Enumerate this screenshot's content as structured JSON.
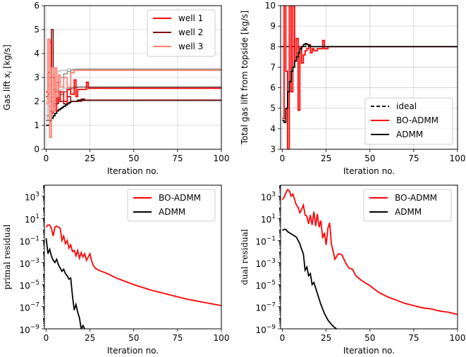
{
  "chart_data": [
    {
      "id": "gaslift",
      "type": "line",
      "xlabel": "Iteration no.",
      "ylabel": "Gas lift $x_i$ [kg/s]",
      "ylabel_text": "Gas lift x",
      "ylabel_sub": "i",
      "ylabel_tail": " [kg/s]",
      "xlim": [
        -1,
        100
      ],
      "ylim": [
        0,
        6
      ],
      "yscale": "linear",
      "xticks": [
        0,
        25,
        50,
        75,
        100
      ],
      "yticks": [
        0,
        1,
        2,
        3,
        4,
        5,
        6
      ],
      "ytick_labels": [
        "0",
        "1",
        "2",
        "3",
        "4",
        "5",
        "6"
      ],
      "grid": true,
      "legend_position": "top-right",
      "legend": [
        {
          "label": "well 1",
          "color": "#ff0000"
        },
        {
          "label": " well 2",
          "color": "#800000"
        },
        {
          "label": "well 3",
          "color": "#fa8072"
        }
      ],
      "series": [
        {
          "name": "well 3 ideal",
          "color": "#c0c0c0",
          "width": 1.5,
          "style": "step",
          "x": [
            0,
            1,
            2,
            3,
            4,
            5,
            6,
            8,
            10,
            12,
            14,
            16,
            18,
            22,
            100
          ],
          "y": [
            1.3,
            2.2,
            2.7,
            3.0,
            3.1,
            3.2,
            3.25,
            3.3,
            3.3,
            3.35,
            3.35,
            3.35,
            3.35,
            3.35,
            3.35
          ]
        },
        {
          "name": "well 1 ideal",
          "color": "#c0c0c0",
          "width": 1.5,
          "style": "step",
          "x": [
            0,
            1,
            2,
            3,
            4,
            6,
            8,
            10,
            14,
            18,
            22,
            100
          ],
          "y": [
            1.2,
            1.8,
            2.1,
            2.3,
            2.4,
            2.45,
            2.5,
            2.55,
            2.6,
            2.6,
            2.6,
            2.6
          ]
        },
        {
          "name": "well 1 ADMM",
          "color": "#606060",
          "width": 1.5,
          "style": "step",
          "x": [
            0,
            2,
            4,
            6,
            8,
            10,
            12,
            14,
            16,
            18,
            20,
            100
          ],
          "y": [
            1.2,
            1.6,
            1.9,
            2.1,
            2.3,
            2.4,
            2.5,
            2.55,
            2.58,
            2.6,
            2.6,
            2.6
          ]
        },
        {
          "name": "well 3 ADMM",
          "color": "#909090",
          "width": 1.5,
          "style": "step",
          "x": [
            0,
            2,
            4,
            6,
            8,
            10,
            12,
            14,
            16,
            18,
            100
          ],
          "y": [
            1.4,
            2.0,
            2.5,
            2.8,
            3.0,
            3.15,
            3.25,
            3.3,
            3.33,
            3.35,
            3.35
          ]
        },
        {
          "name": "well 2 ADMM",
          "color": "#000000",
          "width": 1.8,
          "style": "step",
          "x": [
            0,
            1,
            2,
            3,
            4,
            5,
            6,
            7,
            8,
            9,
            10,
            11,
            12,
            13,
            14,
            16,
            18,
            20,
            100
          ],
          "y": [
            1.0,
            1.0,
            1.2,
            1.3,
            1.4,
            1.5,
            1.6,
            1.65,
            1.7,
            1.75,
            1.8,
            1.85,
            1.9,
            1.95,
            2.0,
            2.0,
            2.05,
            2.05,
            2.05
          ]
        },
        {
          "name": "well 2",
          "color": "#800000",
          "width": 1.5,
          "style": "step",
          "x": [
            0,
            1,
            2,
            3,
            4,
            5,
            6,
            7,
            8,
            10,
            12,
            14,
            16,
            18,
            20,
            22,
            24,
            25,
            100
          ],
          "y": [
            2.2,
            2.3,
            3.0,
            5.0,
            1.8,
            2.4,
            1.9,
            2.4,
            2.0,
            1.9,
            2.2,
            2.0,
            2.0,
            2.0,
            2.1,
            2.05,
            2.05,
            2.05,
            2.05
          ]
        },
        {
          "name": "well 1",
          "color": "#ff0000",
          "width": 1.8,
          "style": "step",
          "x": [
            0,
            1,
            2,
            3,
            4,
            5,
            6,
            7,
            8,
            10,
            12,
            14,
            16,
            17,
            18,
            20,
            22,
            23,
            24,
            25,
            100
          ],
          "y": [
            2.4,
            3.2,
            4.5,
            1.5,
            3.0,
            1.6,
            2.8,
            2.0,
            2.4,
            2.0,
            2.5,
            2.3,
            2.9,
            2.2,
            2.5,
            2.5,
            2.5,
            2.8,
            2.55,
            2.55,
            2.55
          ]
        },
        {
          "name": "well 3",
          "color": "#fa8072",
          "width": 1.8,
          "style": "step",
          "x": [
            0,
            1,
            2,
            3,
            4,
            5,
            6,
            7,
            8,
            10,
            12,
            14,
            16,
            17,
            18,
            20,
            22,
            24,
            25,
            100
          ],
          "y": [
            1.9,
            4.6,
            0.5,
            3.4,
            1.6,
            3.4,
            2.2,
            3.1,
            2.6,
            3.0,
            2.6,
            3.2,
            3.3,
            3.3,
            3.3,
            3.3,
            3.3,
            3.3,
            3.3,
            3.3
          ]
        }
      ]
    },
    {
      "id": "total",
      "type": "line",
      "xlabel": "Iteration no.",
      "ylabel": "Total gas lift from topside [kg/s]",
      "xlim": [
        -1,
        100
      ],
      "ylim": [
        3,
        10
      ],
      "yscale": "linear",
      "xticks": [
        0,
        25,
        50,
        75,
        100
      ],
      "yticks": [
        3,
        4,
        5,
        6,
        7,
        8,
        9,
        10
      ],
      "ytick_labels": [
        "3",
        "4",
        "5",
        "6",
        "7",
        "8",
        "9",
        "10"
      ],
      "grid": true,
      "legend_position": "lower-right",
      "legend": [
        {
          "label": "ideal",
          "color": "#000000",
          "dash": true
        },
        {
          "label": "BO-ADMM",
          "color": "#ff0000"
        },
        {
          "label": "ADMM",
          "color": "#000000"
        }
      ],
      "series": [
        {
          "name": "ideal",
          "color": "#000000",
          "width": 1.5,
          "dash": "5,3",
          "style": "line",
          "x": [
            -1,
            100
          ],
          "y": [
            8.0,
            8.0
          ]
        },
        {
          "name": "BO-ADMM",
          "color": "#ff0000",
          "width": 1.8,
          "style": "step",
          "x": [
            0,
            1,
            2,
            3,
            4,
            5,
            6,
            7,
            8,
            9,
            10,
            11,
            12,
            13,
            14,
            15,
            16,
            17,
            18,
            20,
            22,
            23,
            24,
            26,
            28,
            100
          ],
          "y": [
            4.5,
            10,
            6.8,
            3.0,
            10,
            5.8,
            10,
            7.3,
            8.4,
            4.9,
            8.0,
            7.2,
            7.6,
            7.8,
            7.9,
            8.1,
            7.7,
            7.9,
            7.8,
            7.9,
            7.9,
            8.3,
            7.9,
            8.0,
            8.0,
            8.0
          ]
        },
        {
          "name": "ADMM",
          "color": "#000000",
          "width": 1.8,
          "style": "step",
          "x": [
            0,
            1,
            2,
            3,
            4,
            5,
            6,
            7,
            8,
            9,
            10,
            11,
            12,
            13,
            14,
            15,
            16,
            100
          ],
          "y": [
            4.4,
            4.3,
            5.0,
            5.8,
            6.3,
            6.8,
            7.0,
            7.3,
            7.5,
            7.7,
            7.9,
            8.0,
            8.1,
            8.15,
            8.1,
            8.05,
            8.0,
            8.0
          ]
        }
      ]
    },
    {
      "id": "primal",
      "type": "line",
      "xlabel": "Iteration no.",
      "ylabel": "primal residual",
      "xlim": [
        -1,
        100
      ],
      "ylim": [
        -9,
        4
      ],
      "yscale": "log",
      "xticks": [
        0,
        25,
        50,
        75,
        100
      ],
      "yticks": [
        -9,
        -7,
        -5,
        -3,
        -1,
        1,
        3
      ],
      "ytick_labels": [
        "10",
        "10",
        "10",
        "10",
        "10",
        "10",
        "10"
      ],
      "ytick_exps": [
        "−9",
        "−7",
        "−5",
        "−3",
        "−1",
        "1",
        "3"
      ],
      "grid": false,
      "legend_position": "top-right",
      "legend": [
        {
          "label": "BO-ADMM",
          "color": "#ff0000"
        },
        {
          "label": "ADMM",
          "color": "#000000"
        }
      ],
      "series": [
        {
          "name": "BO-ADMM",
          "color": "#ff0000",
          "width": 1.8,
          "style": "line",
          "x": [
            0,
            1,
            2,
            3,
            4,
            5,
            6,
            7,
            8,
            9,
            10,
            11,
            12,
            13,
            14,
            15,
            16,
            17,
            18,
            19,
            20,
            21,
            22,
            23,
            24,
            25,
            26,
            27,
            28,
            30,
            35,
            40,
            45,
            50,
            60,
            70,
            80,
            90,
            100
          ],
          "y": [
            0.2,
            0.4,
            0.4,
            0.1,
            -0.6,
            0.2,
            0.3,
            0.2,
            0.1,
            -1.0,
            -0.6,
            -1.3,
            -1.0,
            -1.7,
            -1.4,
            -2.0,
            -1.9,
            -2.4,
            -1.9,
            -2.6,
            -2.1,
            -2.5,
            -2.2,
            -2.8,
            -2.5,
            -2.2,
            -2.9,
            -3.3,
            -3.5,
            -3.7,
            -4.0,
            -4.4,
            -4.7,
            -5.0,
            -5.5,
            -5.9,
            -6.3,
            -6.6,
            -6.9
          ]
        },
        {
          "name": "ADMM",
          "color": "#000000",
          "width": 1.8,
          "style": "line",
          "x": [
            0,
            1,
            2,
            3,
            4,
            5,
            6,
            7,
            8,
            9,
            10,
            11,
            12,
            13,
            14,
            15,
            16,
            17,
            18,
            19,
            20,
            21,
            22
          ],
          "y": [
            -0.8,
            -2.2,
            -1.8,
            -2.4,
            -2.8,
            -3.0,
            -2.7,
            -3.2,
            -3.5,
            -3.8,
            -3.6,
            -4.0,
            -4.2,
            -4.5,
            -4.4,
            -6.0,
            -7.3,
            -6.8,
            -7.5,
            -8.0,
            -9.0,
            -8.7,
            -9.0
          ]
        }
      ]
    },
    {
      "id": "dual",
      "type": "line",
      "xlabel": "Iteration no.",
      "ylabel": "dual residual",
      "xlim": [
        -1,
        100
      ],
      "ylim": [
        -9,
        4
      ],
      "yscale": "log",
      "xticks": [
        0,
        25,
        50,
        75,
        100
      ],
      "yticks": [
        -9,
        -7,
        -5,
        -3,
        -1,
        1,
        3
      ],
      "ytick_labels": [
        "10",
        "10",
        "10",
        "10",
        "10",
        "10",
        "10"
      ],
      "ytick_exps": [
        "−9",
        "−7",
        "−5",
        "−3",
        "−1",
        "1",
        "3"
      ],
      "grid": false,
      "legend_position": "top-right",
      "legend": [
        {
          "label": "BO-ADMM",
          "color": "#ff0000"
        },
        {
          "label": "ADMM",
          "color": "#000000"
        }
      ],
      "series": [
        {
          "name": "BO-ADMM",
          "color": "#ff0000",
          "width": 1.8,
          "style": "line",
          "x": [
            0,
            1,
            2,
            3,
            4,
            5,
            6,
            7,
            8,
            9,
            10,
            11,
            12,
            13,
            14,
            15,
            16,
            17,
            18,
            19,
            20,
            21,
            22,
            23,
            24,
            25,
            26,
            27,
            28,
            30,
            32,
            34,
            36,
            38,
            40,
            42,
            45,
            50,
            55,
            60,
            65,
            70,
            75,
            80,
            85,
            90,
            95,
            100
          ],
          "y": [
            2.7,
            2.9,
            3.3,
            3.6,
            3.5,
            3.0,
            3.2,
            2.7,
            2.2,
            2.0,
            1.5,
            1.8,
            2.2,
            1.3,
            1.2,
            0.5,
            1.3,
            0.4,
            1.6,
            0.3,
            1.4,
            0.2,
            0.8,
            -0.8,
            -0.3,
            -1.4,
            0.1,
            0.6,
            -1.3,
            -2.7,
            -2.2,
            -2.3,
            -3.0,
            -3.5,
            -3.6,
            -4.2,
            -4.6,
            -5.1,
            -5.7,
            -6.1,
            -6.4,
            -6.7,
            -6.9,
            -7.1,
            -7.2,
            -7.4,
            -7.5,
            -7.7
          ]
        },
        {
          "name": "ADMM",
          "color": "#000000",
          "width": 1.8,
          "style": "line",
          "x": [
            0,
            1,
            2,
            3,
            4,
            5,
            6,
            7,
            8,
            9,
            10,
            11,
            12,
            13,
            14,
            15,
            16,
            17,
            18,
            19,
            20,
            22,
            24,
            26,
            28,
            30,
            31
          ],
          "y": [
            -0.1,
            0.0,
            0.0,
            -0.2,
            -0.3,
            -0.4,
            -0.5,
            -0.6,
            -0.7,
            -1.0,
            -1.3,
            -1.8,
            -2.2,
            -3.7,
            -3.4,
            -4.2,
            -4.0,
            -5.0,
            -4.8,
            -5.3,
            -5.8,
            -6.8,
            -7.6,
            -8.2,
            -8.6,
            -8.9,
            -9.0
          ]
        }
      ]
    }
  ]
}
